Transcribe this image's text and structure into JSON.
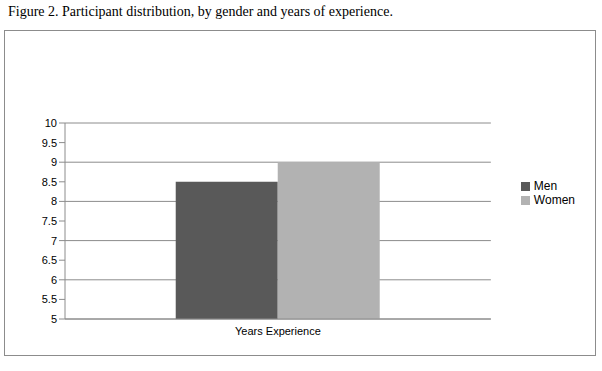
{
  "chart_data": {
    "type": "bar",
    "title": "Figure 2. Participant distribution, by gender and years of experience.",
    "categories": [
      "Years Experience"
    ],
    "series": [
      {
        "name": "Men",
        "color": "#595959",
        "values": [
          8.5
        ]
      },
      {
        "name": "Women",
        "color": "#b2b2b2",
        "values": [
          9
        ]
      }
    ],
    "ylim": [
      5,
      10
    ],
    "yticks": [
      5,
      5.5,
      6,
      6.5,
      7,
      7.5,
      8,
      8.5,
      9,
      9.5,
      10
    ],
    "grid": true,
    "legend": "right"
  }
}
